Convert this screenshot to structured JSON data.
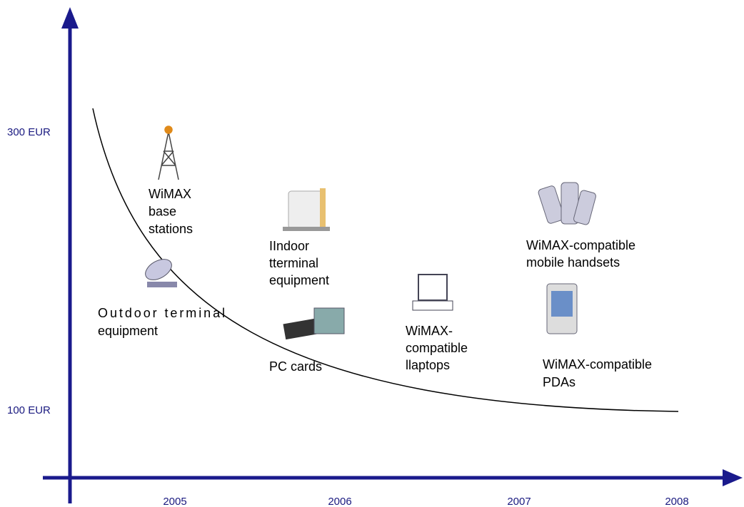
{
  "axes": {
    "y_labels": [
      "300 EUR",
      "100 EUR"
    ],
    "x_labels": [
      "2005",
      "2006",
      "2007",
      "2008"
    ]
  },
  "items": [
    {
      "lines": [
        "WiMAX",
        "base",
        "stations"
      ]
    },
    {
      "lines": [
        "IIndoor",
        "tterminal",
        "equipment"
      ]
    },
    {
      "lines": [
        "Outdoor terminal",
        "equipment"
      ]
    },
    {
      "lines": [
        "PC cards"
      ]
    },
    {
      "lines": [
        "WiMAX-",
        "compatible",
        "llaptops"
      ]
    },
    {
      "lines": [
        "WiMAX-compatible",
        "mobile handsets"
      ]
    },
    {
      "lines": [
        "WiMAX-compatible",
        "PDAs"
      ]
    }
  ]
}
